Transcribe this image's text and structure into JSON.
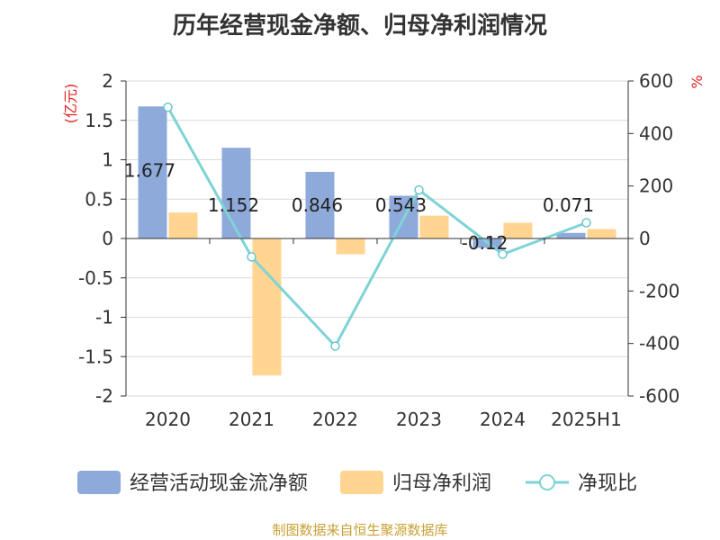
{
  "chart_data": {
    "type": "bar",
    "title": "历年经营现金净额、归母净利润情况",
    "categories": [
      "2020",
      "2021",
      "2022",
      "2023",
      "2024",
      "2025H1"
    ],
    "left_axis": {
      "unit_label": "(亿元)",
      "ylim": [
        -2,
        2
      ],
      "ticks": [
        "2",
        "1.5",
        "1",
        "0.5",
        "0",
        "-0.5",
        "-1",
        "-1.5",
        "-2"
      ]
    },
    "right_axis": {
      "unit_label": "%",
      "ylim": [
        -600,
        600
      ],
      "ticks": [
        "600",
        "400",
        "200",
        "0",
        "-200",
        "-400",
        "-600"
      ]
    },
    "series": [
      {
        "name": "经营活动现金流净额",
        "type": "bar",
        "axis": "left",
        "color": "#8eaadb",
        "values": [
          1.677,
          1.152,
          0.846,
          0.543,
          -0.12,
          0.071
        ],
        "labels": [
          "1.677",
          "1.152",
          "0.846",
          "0.543",
          "-0.12",
          "0.071"
        ]
      },
      {
        "name": "归母净利润",
        "type": "bar",
        "axis": "left",
        "color": "#ffd591",
        "values": [
          0.33,
          -1.74,
          -0.2,
          0.29,
          0.2,
          0.12
        ]
      },
      {
        "name": "净现比",
        "type": "line",
        "axis": "right",
        "color": "#7fd3d6",
        "values": [
          500,
          -70,
          -410,
          185,
          -60,
          60
        ]
      }
    ],
    "legend_position": "bottom",
    "grid": true
  },
  "source": "制图数据来自恒生聚源数据库"
}
